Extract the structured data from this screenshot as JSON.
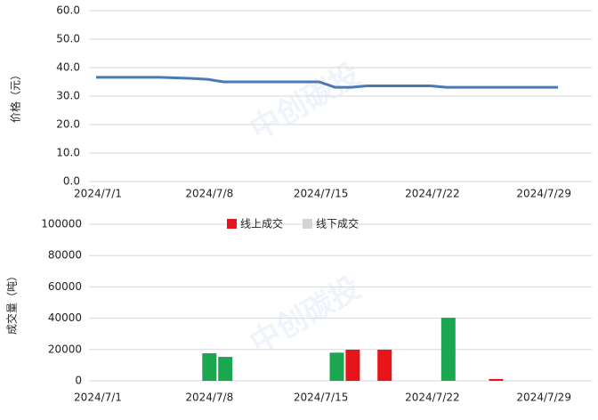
{
  "chart_data": [
    {
      "type": "line",
      "y_label": "价格（元）",
      "categories": [
        "2024/7/1",
        null,
        null,
        null,
        null,
        null,
        null,
        "2024/7/8",
        null,
        null,
        null,
        null,
        null,
        null,
        "2024/7/15",
        null,
        null,
        null,
        null,
        null,
        null,
        "2024/7/22",
        null,
        null,
        null,
        null,
        null,
        null,
        "2024/7/29",
        null
      ],
      "series": [
        {
          "name": "价格",
          "color": "#4a7ab5",
          "values": [
            36.6,
            36.6,
            36.6,
            36.6,
            36.6,
            36.4,
            36.2,
            35.9,
            35,
            35,
            35,
            35,
            35,
            35,
            35,
            33.1,
            33.1,
            33.6,
            33.6,
            33.6,
            33.6,
            33.6,
            33.1,
            33.1,
            33.1,
            33.1,
            33.1,
            33.1,
            33.1,
            33.1
          ]
        }
      ],
      "ylim": [
        0,
        60
      ],
      "yticks": [
        {
          "value": 0,
          "label": "0.0"
        },
        {
          "value": 10,
          "label": "10.0"
        },
        {
          "value": 20,
          "label": "20.0"
        },
        {
          "value": 30,
          "label": "30.0"
        },
        {
          "value": 40,
          "label": "40.0"
        },
        {
          "value": 50,
          "label": "50.0"
        },
        {
          "value": 60,
          "label": "60.0"
        }
      ],
      "grid": true
    },
    {
      "type": "bar",
      "y_label": "成交量（吨）",
      "categories": [
        "2024/7/1",
        null,
        null,
        null,
        null,
        null,
        null,
        "2024/7/8",
        null,
        null,
        null,
        null,
        null,
        null,
        "2024/7/15",
        null,
        null,
        null,
        null,
        null,
        null,
        "2024/7/22",
        null,
        null,
        null,
        null,
        null,
        null,
        "2024/7/29",
        null
      ],
      "series": [
        {
          "name": "线上成交",
          "color": "#e8141c",
          "legend_color": "#e8141c",
          "values": [
            null,
            null,
            null,
            null,
            null,
            null,
            null,
            null,
            null,
            null,
            null,
            null,
            null,
            null,
            null,
            null,
            19900,
            null,
            19900,
            null,
            null,
            null,
            null,
            null,
            null,
            1200,
            null,
            null,
            null,
            null
          ]
        },
        {
          "name": "线下成交",
          "color": "#1ba74f",
          "legend_color": "#d4d4d4",
          "values": [
            null,
            null,
            null,
            null,
            null,
            null,
            null,
            17600,
            15300,
            null,
            null,
            null,
            null,
            null,
            null,
            18000,
            null,
            null,
            null,
            null,
            null,
            null,
            40300,
            null,
            null,
            null,
            null,
            null,
            null,
            null
          ]
        }
      ],
      "ylim": [
        0,
        100000
      ],
      "yticks": [
        0,
        20000,
        40000,
        60000,
        80000,
        100000
      ],
      "grid": true,
      "legend": "top"
    }
  ],
  "watermark": "中创碳投"
}
